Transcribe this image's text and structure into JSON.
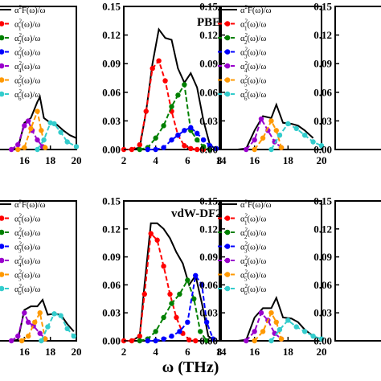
{
  "figure": {
    "xlabel": "ω (THz)",
    "legend_entries": [
      {
        "main": "α",
        "sup": "2",
        "rest": "F(ω)/ω",
        "color": "#000000"
      },
      {
        "main": "α",
        "sup": "2",
        "sub": "1",
        "rest": "(ω)/ω",
        "color": "#ff0000"
      },
      {
        "main": "α",
        "sup": "2",
        "sub": "2",
        "rest": "(ω)/ω",
        "color": "#008000"
      },
      {
        "main": "α",
        "sup": "2",
        "sub": "3",
        "rest": "(ω)/ω",
        "color": "#0000ff"
      },
      {
        "main": "α",
        "sup": "2",
        "sub": "4",
        "rest": "(ω)/ω",
        "color": "#9900cc"
      },
      {
        "main": "α",
        "sup": "2",
        "sub": "5",
        "rest": "(ω)/ω",
        "color": "#ff9900"
      },
      {
        "main": "α",
        "sup": "2",
        "sub": "6",
        "rest": "(ω)/ω",
        "color": "#33cccc"
      }
    ],
    "colors": {
      "total": "#000000",
      "s1": "#ff0000",
      "s2": "#008000",
      "s3": "#0000ff",
      "s4": "#9900cc",
      "s5": "#ff9900",
      "s6": "#33cccc"
    }
  },
  "chart_data": [
    {
      "type": "line",
      "method_label": "PBE",
      "y_ticks": [
        "0.15",
        "0.12",
        "0.09",
        "0.06",
        "0.03",
        "0.00"
      ],
      "ylim": [
        0,
        0.15
      ],
      "panels": [
        {
          "name": "left",
          "xlim": [
            14,
            20
          ],
          "x_ticks": [
            "16",
            "18",
            "20"
          ],
          "series": [
            {
              "key": "total",
              "x": [
                14.0,
                14.5,
                15.0,
                15.5,
                16.0,
                16.5,
                17.0,
                17.2,
                17.5,
                18.0,
                18.5,
                19.0,
                19.5,
                20.0
              ],
              "y": [
                0.0,
                0.0,
                0.0,
                0.001,
                0.028,
                0.033,
                0.05,
                0.055,
                0.033,
                0.028,
                0.026,
                0.02,
                0.015,
                0.012
              ]
            },
            {
              "key": "s4",
              "x": [
                15.0,
                15.5,
                16.0,
                16.3,
                16.6,
                17.0,
                17.4
              ],
              "y": [
                0.0,
                0.005,
                0.025,
                0.03,
                0.02,
                0.01,
                0.003
              ]
            },
            {
              "key": "s5",
              "x": [
                15.5,
                16.0,
                16.5,
                17.0,
                17.3,
                17.6
              ],
              "y": [
                0.0,
                0.002,
                0.022,
                0.04,
                0.02,
                0.002
              ]
            },
            {
              "key": "s6",
              "x": [
                17.0,
                17.5,
                18.0,
                18.3,
                18.8,
                19.3,
                20.0
              ],
              "y": [
                0.0,
                0.01,
                0.028,
                0.027,
                0.018,
                0.008,
                0.003
              ]
            }
          ]
        },
        {
          "name": "middle",
          "xlim": [
            2,
            8
          ],
          "x_ticks": [
            "2",
            "4",
            "6",
            "8"
          ],
          "series": [
            {
              "key": "total",
              "x": [
                2.0,
                2.5,
                3.0,
                3.4,
                3.8,
                4.2,
                4.6,
                5.0,
                5.4,
                5.8,
                6.2,
                6.6,
                7.0,
                7.4,
                7.8
              ],
              "y": [
                0.0,
                0.0,
                0.002,
                0.04,
                0.09,
                0.126,
                0.117,
                0.115,
                0.085,
                0.07,
                0.08,
                0.065,
                0.03,
                0.005,
                0.0
              ]
            },
            {
              "key": "s1",
              "x": [
                2.0,
                2.5,
                3.0,
                3.4,
                3.8,
                4.2,
                4.6,
                5.0,
                5.4,
                5.8,
                6.2,
                6.6,
                7.0
              ],
              "y": [
                0.0,
                0.0,
                0.005,
                0.04,
                0.085,
                0.093,
                0.072,
                0.04,
                0.015,
                0.004,
                0.001,
                0.0,
                0.0
              ]
            },
            {
              "key": "s2",
              "x": [
                3.0,
                3.5,
                4.0,
                4.5,
                5.0,
                5.4,
                5.8,
                6.2,
                6.6,
                7.0,
                7.4
              ],
              "y": [
                0.0,
                0.002,
                0.012,
                0.025,
                0.045,
                0.057,
                0.068,
                0.02,
                0.01,
                0.003,
                0.0
              ]
            },
            {
              "key": "s3",
              "x": [
                3.5,
                4.0,
                4.5,
                5.0,
                5.4,
                5.8,
                6.2,
                6.6,
                7.0,
                7.4,
                7.8
              ],
              "y": [
                0.0,
                0.0,
                0.002,
                0.01,
                0.015,
                0.02,
                0.023,
                0.017,
                0.01,
                0.004,
                0.001
              ]
            }
          ]
        },
        {
          "name": "right",
          "xlim": [
            14,
            20
          ],
          "x_ticks": [
            "14",
            "16",
            "18",
            "20"
          ],
          "series": [
            {
              "key": "total",
              "x": [
                14.0,
                14.5,
                15.0,
                15.5,
                16.0,
                16.5,
                17.0,
                17.3,
                17.7,
                18.2,
                18.6,
                19.0,
                19.5
              ],
              "y": [
                0.0,
                0.0,
                0.0,
                0.001,
                0.02,
                0.035,
                0.033,
                0.047,
                0.028,
                0.027,
                0.025,
                0.02,
                0.012
              ]
            },
            {
              "key": "s4",
              "x": [
                15.5,
                16.0,
                16.4,
                16.8,
                17.2,
                17.6
              ],
              "y": [
                0.0,
                0.01,
                0.032,
                0.02,
                0.008,
                0.002
              ]
            },
            {
              "key": "s5",
              "x": [
                16.0,
                16.5,
                17.0,
                17.3,
                17.6
              ],
              "y": [
                0.0,
                0.012,
                0.03,
                0.02,
                0.002
              ]
            },
            {
              "key": "s6",
              "x": [
                17.0,
                17.5,
                18.0,
                18.5,
                19.0,
                19.5,
                20.0
              ],
              "y": [
                0.0,
                0.015,
                0.027,
                0.022,
                0.015,
                0.008,
                0.004
              ]
            }
          ]
        },
        {
          "name": "far-right",
          "xlim": [
            2,
            8
          ],
          "x_ticks": [],
          "series": []
        }
      ]
    },
    {
      "type": "line",
      "method_label": "vdW-DF2",
      "y_ticks": [
        "0.15",
        "0.12",
        "0.09",
        "0.06",
        "0.03",
        "0.00"
      ],
      "ylim": [
        0,
        0.15
      ],
      "panels": [
        {
          "name": "left",
          "xlim": [
            14,
            20
          ],
          "x_ticks": [
            "16",
            "18",
            "20"
          ],
          "series": [
            {
              "key": "total",
              "x": [
                14.0,
                14.5,
                15.0,
                15.5,
                16.0,
                16.5,
                17.0,
                17.4,
                17.8,
                18.3,
                18.8,
                19.3,
                19.8
              ],
              "y": [
                0.0,
                0.0,
                0.0,
                0.001,
                0.033,
                0.037,
                0.037,
                0.044,
                0.028,
                0.029,
                0.028,
                0.018,
                0.01
              ]
            },
            {
              "key": "s4",
              "x": [
                15.0,
                15.5,
                16.0,
                16.3,
                16.7,
                17.2,
                17.6
              ],
              "y": [
                0.0,
                0.005,
                0.03,
                0.02,
                0.016,
                0.008,
                0.002
              ]
            },
            {
              "key": "s5",
              "x": [
                15.8,
                16.3,
                16.8,
                17.2,
                17.6
              ],
              "y": [
                0.0,
                0.005,
                0.02,
                0.03,
                0.002
              ]
            },
            {
              "key": "s6",
              "x": [
                17.3,
                17.8,
                18.3,
                18.8,
                19.3,
                19.8
              ],
              "y": [
                0.0,
                0.015,
                0.029,
                0.027,
                0.013,
                0.005
              ]
            }
          ]
        },
        {
          "name": "middle",
          "xlim": [
            2,
            8
          ],
          "x_ticks": [
            "2",
            "4",
            "6",
            "8"
          ],
          "series": [
            {
              "key": "total",
              "x": [
                2.0,
                2.5,
                3.0,
                3.3,
                3.7,
                4.1,
                4.5,
                4.9,
                5.3,
                5.7,
                6.1,
                6.5,
                6.9,
                7.3,
                7.7
              ],
              "y": [
                0.0,
                0.0,
                0.005,
                0.06,
                0.126,
                0.126,
                0.12,
                0.11,
                0.095,
                0.083,
                0.06,
                0.07,
                0.04,
                0.005,
                0.0
              ]
            },
            {
              "key": "s1",
              "x": [
                2.0,
                2.5,
                3.0,
                3.3,
                3.7,
                4.1,
                4.5,
                4.9,
                5.3,
                5.7,
                6.1,
                6.5
              ],
              "y": [
                0.0,
                0.0,
                0.005,
                0.05,
                0.115,
                0.108,
                0.08,
                0.05,
                0.025,
                0.008,
                0.001,
                0.0
              ]
            },
            {
              "key": "s2",
              "x": [
                3.0,
                3.5,
                4.0,
                4.5,
                5.0,
                5.5,
                6.0,
                6.4,
                6.8,
                7.2
              ],
              "y": [
                0.0,
                0.002,
                0.01,
                0.025,
                0.04,
                0.05,
                0.065,
                0.045,
                0.01,
                0.0
              ]
            },
            {
              "key": "s3",
              "x": [
                3.5,
                4.0,
                4.5,
                5.0,
                5.5,
                6.0,
                6.5,
                6.9,
                7.2,
                7.6
              ],
              "y": [
                0.0,
                0.0,
                0.002,
                0.005,
                0.01,
                0.02,
                0.07,
                0.06,
                0.02,
                0.002
              ]
            }
          ]
        },
        {
          "name": "right",
          "xlim": [
            14,
            20
          ],
          "x_ticks": [
            "14",
            "16",
            "18",
            "20"
          ],
          "series": [
            {
              "key": "total",
              "x": [
                14.0,
                14.5,
                15.0,
                15.5,
                16.0,
                16.5,
                17.0,
                17.3,
                17.7,
                18.2,
                18.6,
                19.0,
                19.5
              ],
              "y": [
                0.0,
                0.0,
                0.0,
                0.001,
                0.025,
                0.035,
                0.035,
                0.046,
                0.025,
                0.024,
                0.02,
                0.012,
                0.005
              ]
            },
            {
              "key": "s4",
              "x": [
                15.5,
                16.0,
                16.4,
                16.8,
                17.2,
                17.6
              ],
              "y": [
                0.0,
                0.01,
                0.03,
                0.022,
                0.008,
                0.002
              ]
            },
            {
              "key": "s5",
              "x": [
                16.0,
                16.5,
                17.0,
                17.3,
                17.6
              ],
              "y": [
                0.0,
                0.01,
                0.03,
                0.02,
                0.002
              ]
            },
            {
              "key": "s6",
              "x": [
                17.0,
                17.5,
                18.0,
                18.5,
                19.0,
                19.5,
                20.0
              ],
              "y": [
                0.0,
                0.012,
                0.022,
                0.015,
                0.01,
                0.005,
                0.002
              ]
            }
          ]
        },
        {
          "name": "far-right",
          "xlim": [
            2,
            8
          ],
          "x_ticks": [],
          "series": []
        }
      ]
    }
  ]
}
